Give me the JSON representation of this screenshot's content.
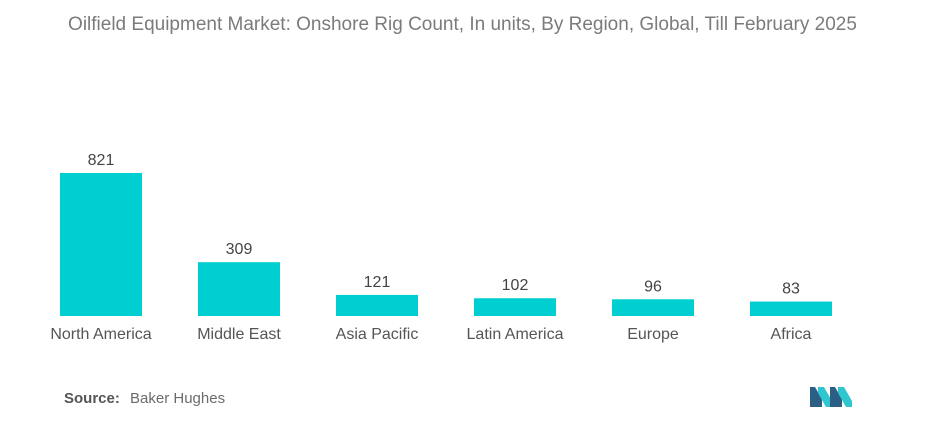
{
  "title": "Oilfield Equipment Market: Onshore Rig Count, In units, By Region, Global, Till February 2025",
  "source": {
    "label": "Source:",
    "text": "Baker Hughes"
  },
  "colors": {
    "bar": "#00cfd1",
    "label": "#444444",
    "category": "#555555",
    "logo_dark": "#2b5f86",
    "logo_light": "#2fc6cf"
  },
  "chart_data": {
    "type": "bar",
    "title": "Oilfield Equipment Market: Onshore Rig Count, In units, By Region, Global, Till February 2025",
    "categories": [
      "North America",
      "Middle East",
      "Asia Pacific",
      "Latin America",
      "Europe",
      "Africa"
    ],
    "values": [
      821,
      309,
      121,
      102,
      96,
      83
    ],
    "xlabel": "",
    "ylabel": "",
    "ylim": [
      0,
      821
    ],
    "grid": false,
    "legend": "none"
  }
}
